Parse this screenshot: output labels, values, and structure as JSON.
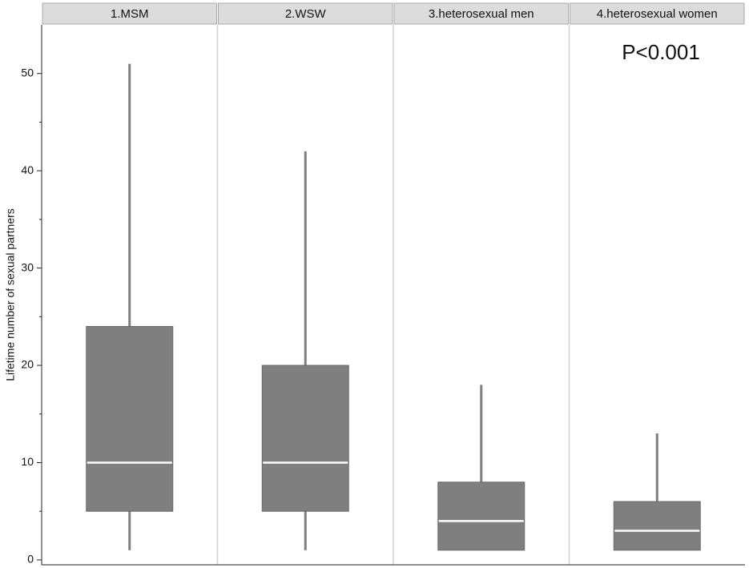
{
  "chart_data": {
    "type": "box",
    "y_label": "Lifetime number of sexual partners",
    "annotation": "P<0.001",
    "categories": [
      "1.MSM",
      "2.WSW",
      "3.heterosexual men",
      "4.heterosexual women"
    ],
    "whisker_low": [
      1,
      1,
      1,
      1
    ],
    "q1": [
      5,
      5,
      1,
      1
    ],
    "median": [
      10,
      10,
      4,
      3
    ],
    "q3": [
      24,
      20,
      8,
      6
    ],
    "whisker_high": [
      51,
      42,
      18,
      13
    ],
    "color": "#7f7f7f",
    "median_color": "#ffffff",
    "ylim": [
      -0.5,
      55
    ],
    "yticks": [
      0,
      10,
      20,
      30,
      40,
      50
    ],
    "minor_yticks": [
      5,
      15,
      25,
      35,
      45
    ]
  }
}
